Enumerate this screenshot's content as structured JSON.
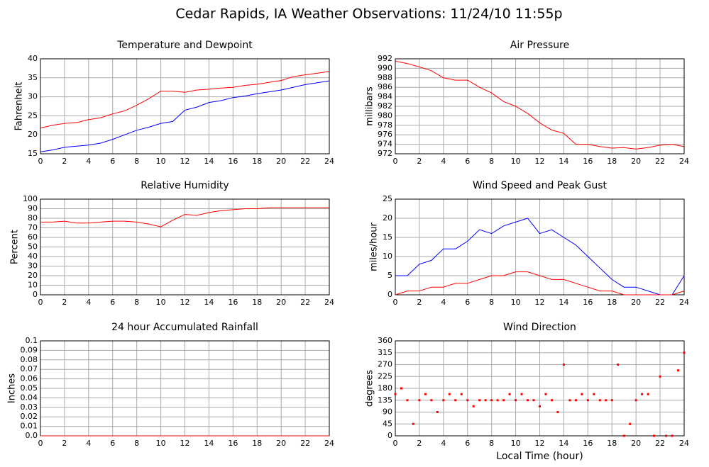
{
  "title": "Cedar Rapids, IA Weather Observations: 11/24/10 11:55p",
  "chart_data": [
    {
      "type": "line",
      "title": "Temperature and Dewpoint",
      "ylabel": "Fahrenheit",
      "x": [
        0,
        1,
        2,
        3,
        4,
        5,
        6,
        7,
        8,
        9,
        10,
        11,
        12,
        13,
        14,
        15,
        16,
        17,
        18,
        19,
        20,
        21,
        22,
        23,
        24
      ],
      "series": [
        {
          "color": "#ff0000",
          "values": [
            21.8,
            22.5,
            23,
            23.2,
            24,
            24.5,
            25.5,
            26.3,
            27.8,
            29.5,
            31.5,
            31.5,
            31.2,
            31.8,
            32,
            32.3,
            32.5,
            33,
            33.3,
            33.8,
            34.3,
            35.3,
            35.8,
            36.2,
            36.7
          ]
        },
        {
          "color": "#0000ff",
          "values": [
            15.5,
            16,
            16.7,
            17,
            17.3,
            17.8,
            18.8,
            20,
            21.2,
            22,
            23,
            23.5,
            26.5,
            27.3,
            28.5,
            29,
            29.8,
            30.2,
            30.8,
            31.3,
            31.8,
            32.5,
            33.2,
            33.7,
            34.2
          ]
        }
      ],
      "xlim": [
        0,
        24
      ],
      "xticks": [
        0,
        2,
        4,
        6,
        8,
        10,
        12,
        14,
        16,
        18,
        20,
        22,
        24
      ],
      "ylim": [
        15,
        40
      ],
      "yticks": [
        15,
        20,
        25,
        30,
        35,
        40
      ],
      "grid": true
    },
    {
      "type": "line",
      "title": "Air Pressure",
      "ylabel": "millibars",
      "x": [
        0,
        1,
        2,
        3,
        4,
        5,
        6,
        7,
        8,
        9,
        10,
        11,
        12,
        13,
        14,
        15,
        16,
        17,
        18,
        19,
        20,
        21,
        22,
        23,
        24
      ],
      "series": [
        {
          "color": "#ff0000",
          "values": [
            991.5,
            991,
            990.3,
            989.5,
            988,
            987.5,
            987.5,
            986,
            984.8,
            983,
            982,
            980.5,
            978.5,
            977,
            976.3,
            974,
            974,
            973.5,
            973.2,
            973.3,
            973,
            973.3,
            973.8,
            974,
            973.5
          ]
        }
      ],
      "xlim": [
        0,
        24
      ],
      "xticks": [
        0,
        2,
        4,
        6,
        8,
        10,
        12,
        14,
        16,
        18,
        20,
        22,
        24
      ],
      "ylim": [
        972,
        992
      ],
      "yticks": [
        972,
        974,
        976,
        978,
        980,
        982,
        984,
        986,
        988,
        990,
        992
      ],
      "grid": true
    },
    {
      "type": "line",
      "title": "Relative Humidity",
      "ylabel": "Percent",
      "x": [
        0,
        1,
        2,
        3,
        4,
        5,
        6,
        7,
        8,
        9,
        10,
        11,
        12,
        13,
        14,
        15,
        16,
        17,
        18,
        19,
        20,
        21,
        22,
        23,
        24
      ],
      "series": [
        {
          "color": "#ff0000",
          "values": [
            76,
            76,
            77,
            75,
            75,
            76,
            77,
            77,
            76,
            74,
            71,
            78,
            84,
            83,
            86,
            88,
            89,
            90,
            90,
            91,
            91,
            91,
            91,
            91,
            91
          ]
        }
      ],
      "xlim": [
        0,
        24
      ],
      "xticks": [
        0,
        2,
        4,
        6,
        8,
        10,
        12,
        14,
        16,
        18,
        20,
        22,
        24
      ],
      "ylim": [
        0,
        100
      ],
      "yticks": [
        0,
        10,
        20,
        30,
        40,
        50,
        60,
        70,
        80,
        90,
        100
      ],
      "grid": true
    },
    {
      "type": "line",
      "title": "Wind Speed and Peak Gust",
      "ylabel": "miles/hour",
      "x": [
        0,
        1,
        2,
        3,
        4,
        5,
        6,
        7,
        8,
        9,
        10,
        11,
        12,
        13,
        14,
        15,
        16,
        17,
        18,
        19,
        20,
        21,
        22,
        23,
        24
      ],
      "series": [
        {
          "color": "#0000ff",
          "values": [
            5,
            5,
            8,
            9,
            12,
            12,
            14,
            17,
            16,
            18,
            19,
            20,
            16,
            17,
            15,
            13,
            10,
            7,
            4,
            2,
            2,
            1,
            0,
            0,
            5
          ]
        },
        {
          "color": "#ff0000",
          "values": [
            0,
            1,
            1,
            2,
            2,
            3,
            3,
            4,
            5,
            5,
            6,
            6,
            5,
            4,
            4,
            3,
            2,
            1,
            1,
            0,
            0,
            0,
            0,
            0,
            1
          ]
        }
      ],
      "xlim": [
        0,
        24
      ],
      "xticks": [
        0,
        2,
        4,
        6,
        8,
        10,
        12,
        14,
        16,
        18,
        20,
        22,
        24
      ],
      "ylim": [
        0,
        25
      ],
      "yticks": [
        0,
        5,
        10,
        15,
        20,
        25
      ],
      "grid": true
    },
    {
      "type": "line",
      "title": "24 hour Accumulated Rainfall",
      "ylabel": "Inches",
      "x": [
        0,
        24
      ],
      "series": [
        {
          "color": "#ff0000",
          "values": [
            0,
            0
          ]
        }
      ],
      "xlim": [
        0,
        24
      ],
      "xticks": [
        0,
        2,
        4,
        6,
        8,
        10,
        12,
        14,
        16,
        18,
        20,
        22,
        24
      ],
      "ylim": [
        0,
        0.1
      ],
      "yticks": [
        {
          "value": 0,
          "label": "0.0"
        },
        0.01,
        0.02,
        0.03,
        0.04,
        0.05,
        0.06,
        0.07,
        0.08,
        0.09,
        0.1
      ],
      "grid": true
    },
    {
      "type": "scatter",
      "title": "Wind Direction",
      "ylabel": "degrees",
      "xlabel": "Local Time (hour)",
      "x": [
        0,
        0.5,
        1,
        1.5,
        2,
        2.5,
        3,
        3.5,
        4,
        4.5,
        5,
        5.5,
        6,
        6.5,
        7,
        7.5,
        8,
        8.5,
        9,
        9.5,
        10,
        10.5,
        11,
        11.5,
        12,
        12.5,
        13,
        13.5,
        14,
        14.5,
        15,
        15.5,
        16,
        16.5,
        17,
        17.5,
        18,
        18.5,
        19,
        19.5,
        20,
        20.5,
        21,
        21.5,
        22,
        22.5,
        23,
        23.5,
        24
      ],
      "series": [
        {
          "color": "#ff0000",
          "values": [
            158,
            180,
            135,
            45,
            135,
            158,
            135,
            90,
            135,
            158,
            135,
            158,
            135,
            112,
            135,
            135,
            135,
            135,
            135,
            158,
            135,
            158,
            135,
            135,
            112,
            158,
            135,
            90,
            270,
            135,
            135,
            158,
            135,
            158,
            135,
            135,
            135,
            270,
            0,
            45,
            135,
            158,
            158,
            0,
            225,
            0,
            0,
            248,
            315
          ]
        }
      ],
      "xlim": [
        0,
        24
      ],
      "xticks": [
        0,
        2,
        4,
        6,
        8,
        10,
        12,
        14,
        16,
        18,
        20,
        22,
        24
      ],
      "ylim": [
        0,
        360
      ],
      "yticks": [
        0,
        45,
        90,
        135,
        180,
        225,
        270,
        315,
        360
      ],
      "grid": true
    }
  ]
}
